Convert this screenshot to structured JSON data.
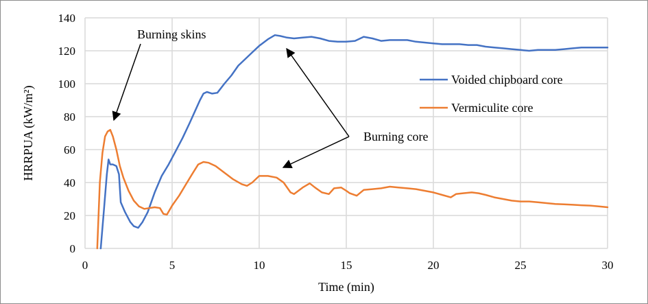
{
  "chart_data": {
    "type": "line",
    "title": "",
    "xlabel": "Time (min)",
    "ylabel": "HRRPUA  (kW/m²)",
    "xlim": [
      0,
      30
    ],
    "ylim": [
      0,
      140
    ],
    "xticks": [
      0,
      5,
      10,
      15,
      20,
      25,
      30
    ],
    "yticks": [
      0,
      20,
      40,
      60,
      80,
      100,
      120,
      140
    ],
    "grid": true,
    "legend_position": "right",
    "series": [
      {
        "name": "Voided chipboard core",
        "color": "#4472C4",
        "x": [
          0.9,
          1.1,
          1.25,
          1.35,
          1.45,
          1.6,
          1.8,
          1.95,
          2.05,
          2.3,
          2.6,
          2.8,
          3.05,
          3.3,
          3.6,
          4.0,
          4.4,
          4.8,
          5.2,
          5.6,
          6.0,
          6.3,
          6.6,
          6.8,
          7.0,
          7.3,
          7.6,
          8.0,
          8.4,
          8.8,
          9.2,
          9.6,
          10.0,
          10.5,
          10.9,
          11.2,
          11.6,
          12.0,
          12.5,
          13.0,
          13.5,
          14.0,
          14.5,
          15.0,
          15.5,
          16.0,
          16.5,
          17.0,
          17.5,
          18.0,
          18.5,
          19.0,
          19.5,
          20.0,
          20.5,
          21.0,
          21.5,
          22.0,
          22.5,
          23.0,
          23.5,
          24.0,
          24.5,
          25.0,
          25.5,
          26.0,
          26.5,
          27.0,
          27.5,
          28.0,
          28.5,
          29.0,
          29.5,
          30.0
        ],
        "values": [
          0,
          25,
          45,
          54,
          51,
          51,
          50,
          45,
          28,
          22,
          16,
          13.5,
          12.5,
          16,
          22,
          34,
          44,
          51,
          59,
          67,
          76,
          83,
          90,
          94,
          95,
          94,
          94.5,
          100,
          105,
          111,
          115,
          119,
          123,
          127,
          129.5,
          129,
          128,
          127.5,
          128,
          128.5,
          127.5,
          126,
          125.5,
          125.5,
          126,
          128.5,
          127.5,
          126,
          126.5,
          126.5,
          126.5,
          125.5,
          125,
          124.5,
          124,
          124,
          124,
          123.5,
          123.5,
          122.5,
          122,
          121.5,
          121,
          120.5,
          120,
          120.5,
          120.5,
          120.5,
          121,
          121.5,
          122,
          122,
          122,
          122
        ]
      },
      {
        "name": "Vermiculite core",
        "color": "#ED7D31",
        "x": [
          0.7,
          0.85,
          1.0,
          1.15,
          1.3,
          1.45,
          1.6,
          1.8,
          2.0,
          2.2,
          2.5,
          2.8,
          3.1,
          3.4,
          3.7,
          4.0,
          4.3,
          4.5,
          4.7,
          5.0,
          5.4,
          5.8,
          6.2,
          6.5,
          6.8,
          7.1,
          7.5,
          8.0,
          8.5,
          9.0,
          9.3,
          9.6,
          10.0,
          10.5,
          11.0,
          11.4,
          11.8,
          12.0,
          12.5,
          12.9,
          13.2,
          13.6,
          14.0,
          14.3,
          14.7,
          15.0,
          15.2,
          15.6,
          16.0,
          16.5,
          17.0,
          17.5,
          18.0,
          18.5,
          19.0,
          19.5,
          20.0,
          20.5,
          21.0,
          21.3,
          21.7,
          22.2,
          22.6,
          23.0,
          23.5,
          24.0,
          24.5,
          25.0,
          25.5,
          26.0,
          26.5,
          27.0,
          27.5,
          28.0,
          28.5,
          29.0,
          29.5,
          30.0
        ],
        "values": [
          0,
          40,
          58,
          68,
          71,
          72,
          68,
          60,
          50,
          43,
          35,
          29,
          25.5,
          24,
          24.5,
          25,
          24.5,
          21,
          20.5,
          26,
          32,
          39,
          46,
          51,
          52.5,
          52,
          50,
          46,
          42,
          39,
          38,
          40,
          44,
          44,
          43,
          40,
          34,
          33,
          37,
          39.5,
          37,
          34,
          33,
          36.5,
          37,
          35,
          33.5,
          32,
          35.5,
          36,
          36.5,
          37.5,
          37,
          36.5,
          36,
          35,
          34,
          32.5,
          31,
          33,
          33.5,
          34,
          33.5,
          32.5,
          31,
          30,
          29,
          28.5,
          28.5,
          28,
          27.5,
          27,
          26.8,
          26.5,
          26.2,
          26,
          25.5,
          25
        ]
      }
    ],
    "annotations": [
      {
        "text": "Burning skins",
        "target_series": "Vermiculite core",
        "target_x": 1.5,
        "target_y": 74
      },
      {
        "text": "Burning core",
        "targets": [
          {
            "series": "Voided chipboard core",
            "x": 11.7,
            "y": 127
          },
          {
            "series": "Vermiculite core",
            "x": 11.4,
            "y": 48
          }
        ]
      }
    ]
  }
}
